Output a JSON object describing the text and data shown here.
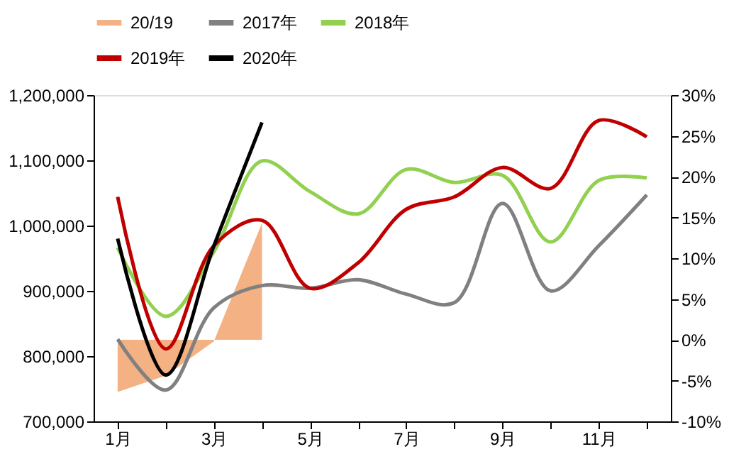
{
  "chart_data": {
    "type": "line",
    "categories": [
      "1月",
      null,
      "3月",
      null,
      "5月",
      null,
      "7月",
      null,
      "9月",
      null,
      "11月",
      null
    ],
    "series": [
      {
        "name": "20/19",
        "type": "area",
        "axis": "y2",
        "color": "#f4b183",
        "values": [
          -6.4,
          -4.4,
          -0.2,
          14.3,
          null,
          null,
          null,
          null,
          null,
          null,
          null,
          null
        ]
      },
      {
        "name": "2017年",
        "color": "#808080",
        "values": [
          826000,
          748000,
          874000,
          908000,
          904000,
          917000,
          895000,
          882000,
          1034000,
          900000,
          969000,
          1047000
        ]
      },
      {
        "name": "2018年",
        "color": "#92d050",
        "values": [
          966000,
          861000,
          960000,
          1099000,
          1052000,
          1018000,
          1086000,
          1066000,
          1077000,
          975000,
          1069000,
          1073000
        ]
      },
      {
        "name": "2019年",
        "color": "#c00000",
        "values": [
          1044000,
          811000,
          969000,
          1008000,
          904000,
          943000,
          1025000,
          1044000,
          1089000,
          1057000,
          1161000,
          1136000
        ]
      },
      {
        "name": "2020年",
        "color": "#000000",
        "values": [
          980000,
          771000,
          969000,
          1158000,
          null,
          null,
          null,
          null,
          null,
          null,
          null,
          null
        ]
      }
    ],
    "ylim": [
      700000,
      1200000
    ],
    "yticks": [
      {
        "value": 700000,
        "label": "700,000"
      },
      {
        "value": 800000,
        "label": "800,000"
      },
      {
        "value": 900000,
        "label": "900,000"
      },
      {
        "value": 1000000,
        "label": "1,000,000"
      },
      {
        "value": 1100000,
        "label": "1,100,000"
      },
      {
        "value": 1200000,
        "label": "1,200,000"
      }
    ],
    "y2lim": [
      -10,
      30
    ],
    "y2ticks": [
      {
        "value": -10,
        "label": "-10%"
      },
      {
        "value": -5,
        "label": "-5%"
      },
      {
        "value": 0,
        "label": "0%"
      },
      {
        "value": 5,
        "label": "5%"
      },
      {
        "value": 10,
        "label": "10%"
      },
      {
        "value": 15,
        "label": "15%"
      },
      {
        "value": 20,
        "label": "20%"
      },
      {
        "value": 25,
        "label": "25%"
      },
      {
        "value": 30,
        "label": "30%"
      }
    ],
    "legend": "top",
    "grid": false
  }
}
